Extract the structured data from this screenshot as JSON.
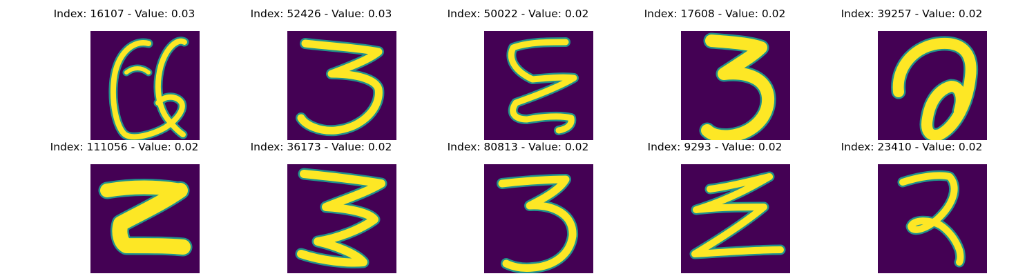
{
  "colors": {
    "background": "#440154",
    "ink": "#fde725",
    "edge": "#21918c"
  },
  "grid": {
    "columns": 5,
    "cells": [
      {
        "index": "16107",
        "value": "0.03",
        "title": "Index: 16107 - Value: 0.03",
        "glyph": "looped-a"
      },
      {
        "index": "52426",
        "value": "0.03",
        "title": "Index: 52426 - Value: 0.03",
        "glyph": "three-flat-top"
      },
      {
        "index": "50022",
        "value": "0.02",
        "title": "Index: 50022 - Value: 0.02",
        "glyph": "epsilon-wave"
      },
      {
        "index": "17608",
        "value": "0.02",
        "title": "Index: 17608 - Value: 0.02",
        "glyph": "three-bold"
      },
      {
        "index": "39257",
        "value": "0.02",
        "title": "Index: 39257 - Value: 0.02",
        "glyph": "looped-d"
      },
      {
        "index": "111056",
        "value": "0.02",
        "title": "Index: 111056 - Value: 0.02",
        "glyph": "bold-z"
      },
      {
        "index": "36173",
        "value": "0.02",
        "title": "Index: 36173 - Value: 0.02",
        "glyph": "three-z"
      },
      {
        "index": "80813",
        "value": "0.02",
        "title": "Index: 80813 - Value: 0.02",
        "glyph": "three-round"
      },
      {
        "index": "9293",
        "value": "0.02",
        "title": "Index: 9293 - Value: 0.02",
        "glyph": "zigzag-z"
      },
      {
        "index": "23410",
        "value": "0.02",
        "title": "Index: 23410 - Value: 0.02",
        "glyph": "two-tail"
      }
    ]
  }
}
